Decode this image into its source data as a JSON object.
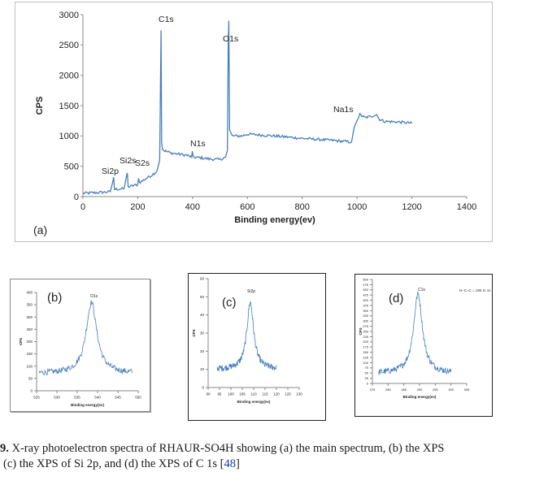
{
  "chart_data": [
    {
      "id": "a",
      "type": "line",
      "panel_label": "(a)",
      "xlabel": "Binding energy(ev)",
      "ylabel": "CPS",
      "xlim": [
        0,
        1400
      ],
      "ylim": [
        0,
        3000
      ],
      "xticks": [
        0,
        200,
        400,
        600,
        800,
        1000,
        1200,
        1400
      ],
      "yticks": [
        0,
        500,
        1000,
        1500,
        2000,
        2500,
        3000
      ],
      "grid": false,
      "series_color": "#4a7ebb",
      "x": [
        0,
        50,
        100,
        110,
        112,
        115,
        150,
        160,
        162,
        165,
        200,
        203,
        206,
        250,
        270,
        280,
        285,
        287,
        290,
        295,
        320,
        350,
        380,
        397,
        399,
        402,
        430,
        460,
        500,
        520,
        527,
        530,
        532,
        535,
        545,
        580,
        600,
        700,
        800,
        900,
        980,
        990,
        1000,
        1010,
        1030,
        1072,
        1080,
        1100,
        1150,
        1200
      ],
      "y": [
        55,
        65,
        80,
        270,
        320,
        120,
        130,
        360,
        390,
        160,
        200,
        300,
        230,
        350,
        420,
        600,
        2740,
        900,
        780,
        760,
        720,
        700,
        680,
        650,
        750,
        650,
        640,
        620,
        610,
        650,
        760,
        2500,
        2900,
        1100,
        1000,
        1000,
        1030,
        1000,
        960,
        930,
        900,
        1150,
        1250,
        1350,
        1300,
        1350,
        1280,
        1240,
        1230,
        1210
      ],
      "annotations": [
        {
          "text": "Si2p",
          "x": 110
        },
        {
          "text": "Si2s",
          "x": 162
        },
        {
          "text": "S2s",
          "x": 203
        },
        {
          "text": "C1s",
          "x": 285
        },
        {
          "text": "N1s",
          "x": 399
        },
        {
          "text": "O1s",
          "x": 532
        },
        {
          "text": "Na1s",
          "x": 1072
        }
      ]
    },
    {
      "id": "b",
      "type": "line",
      "panel_label": "(b)",
      "xlabel": "Binding energy(ev)",
      "ylabel": "CPS",
      "xlim": [
        525,
        550
      ],
      "ylim": [
        0,
        400
      ],
      "xticks": [
        525,
        530,
        535,
        540,
        545,
        550
      ],
      "yticks": [
        0,
        50,
        100,
        150,
        200,
        250,
        300,
        350,
        400
      ],
      "annotations": [
        {
          "text": "O1s",
          "x": 538.5
        }
      ],
      "peak": {
        "center": 538.5,
        "height": 360,
        "baseline": 70,
        "width": 1.6
      }
    },
    {
      "id": "c",
      "type": "line",
      "panel_label": "(c)",
      "xlabel": "Binding energy(ev)",
      "ylabel": "CPS",
      "xlim": [
        90,
        130
      ],
      "ylim": [
        0,
        60
      ],
      "xticks": [
        90,
        95,
        100,
        105,
        110,
        115,
        120,
        125,
        130
      ],
      "yticks": [
        0,
        10,
        20,
        30,
        40,
        50,
        60
      ],
      "annotations": [
        {
          "text": "Si2p",
          "x": 108.5
        }
      ],
      "peak": {
        "center": 108.5,
        "height": 47,
        "baseline": 10,
        "width": 1.8
      }
    },
    {
      "id": "d",
      "type": "line",
      "panel_label": "(d)",
      "xlabel": "Binding energy(ev)",
      "ylabel": "CPS",
      "xlim": [
        275,
        305
      ],
      "ylim": [
        0,
        500
      ],
      "xticks": [
        275,
        280,
        285,
        290,
        295,
        300,
        305
      ],
      "yticks": [
        0,
        25,
        50,
        75,
        100,
        125,
        150,
        175,
        200,
        225,
        250,
        275,
        300,
        325,
        350,
        375,
        400,
        425,
        450,
        475,
        500
      ],
      "annotations": [
        {
          "text": "C1s",
          "x": 289.5
        }
      ],
      "side_note": "N–C=C  = 285 m  1s",
      "peak": {
        "center": 289.5,
        "height": 430,
        "baseline": 48,
        "width": 1.7
      }
    }
  ],
  "caption": {
    "prefix": "9.",
    "line1": " X-ray photoelectron spectra of RHAUR-SO4H showing (a) the main spectrum, (b) the XPS",
    "line2_start": "(c) the XPS of Si 2p, and (d) the XPS of C 1s [",
    "ref": "48",
    "line2_end": "]"
  }
}
